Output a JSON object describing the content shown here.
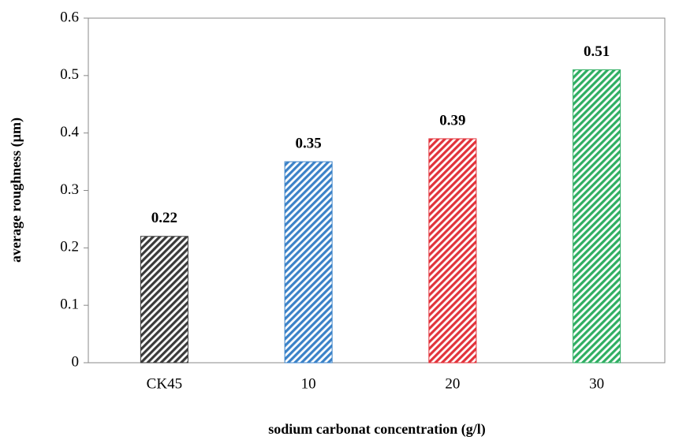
{
  "chart_data": {
    "type": "bar",
    "categories": [
      "CK45",
      "10",
      "20",
      "30"
    ],
    "values": [
      0.22,
      0.35,
      0.39,
      0.51
    ],
    "colors": [
      "#3a3a3a",
      "#3b82c8",
      "#e2333b",
      "#2fae62"
    ],
    "ylim": [
      0,
      0.6
    ],
    "yticks": [
      0,
      0.1,
      0.2,
      0.3,
      0.4,
      0.5,
      0.6
    ],
    "ylabel": "average roughness (µm)",
    "xlabel": "sodium carbonat concentration (g/l)",
    "hatch": true
  }
}
